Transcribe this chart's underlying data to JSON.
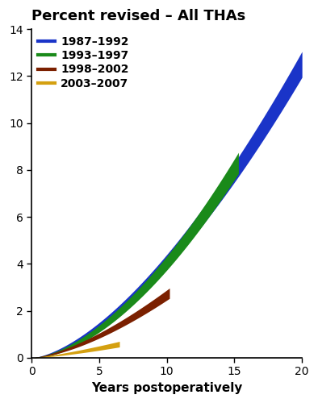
{
  "title": "Percent revised – All THAs",
  "xlabel": "Years postoperatively",
  "xlim": [
    0,
    20
  ],
  "ylim": [
    0,
    14
  ],
  "xticks": [
    0,
    5,
    10,
    15,
    20
  ],
  "yticks": [
    0,
    2,
    4,
    6,
    8,
    10,
    12,
    14
  ],
  "title_fontsize": 13,
  "label_fontsize": 11,
  "tick_fontsize": 10,
  "legend_fontsize": 10,
  "series": [
    {
      "label": "1987–1992",
      "color": "#1a34c8",
      "max_x": 20.0,
      "end_y": 12.5,
      "exponent": 1.6,
      "ci_half": 0.55
    },
    {
      "label": "1993–1997",
      "color": "#1a8a1a",
      "max_x": 15.3,
      "end_y": 8.3,
      "exponent": 1.7,
      "ci_half": 0.45
    },
    {
      "label": "1998–2002",
      "color": "#7b2000",
      "max_x": 10.2,
      "end_y": 2.75,
      "exponent": 1.5,
      "ci_half": 0.22
    },
    {
      "label": "2003–2007",
      "color": "#d4a010",
      "max_x": 6.5,
      "end_y": 0.58,
      "exponent": 1.3,
      "ci_half": 0.12
    }
  ],
  "background_color": "#ffffff",
  "figsize": [
    3.94,
    5.0
  ],
  "dpi": 100
}
